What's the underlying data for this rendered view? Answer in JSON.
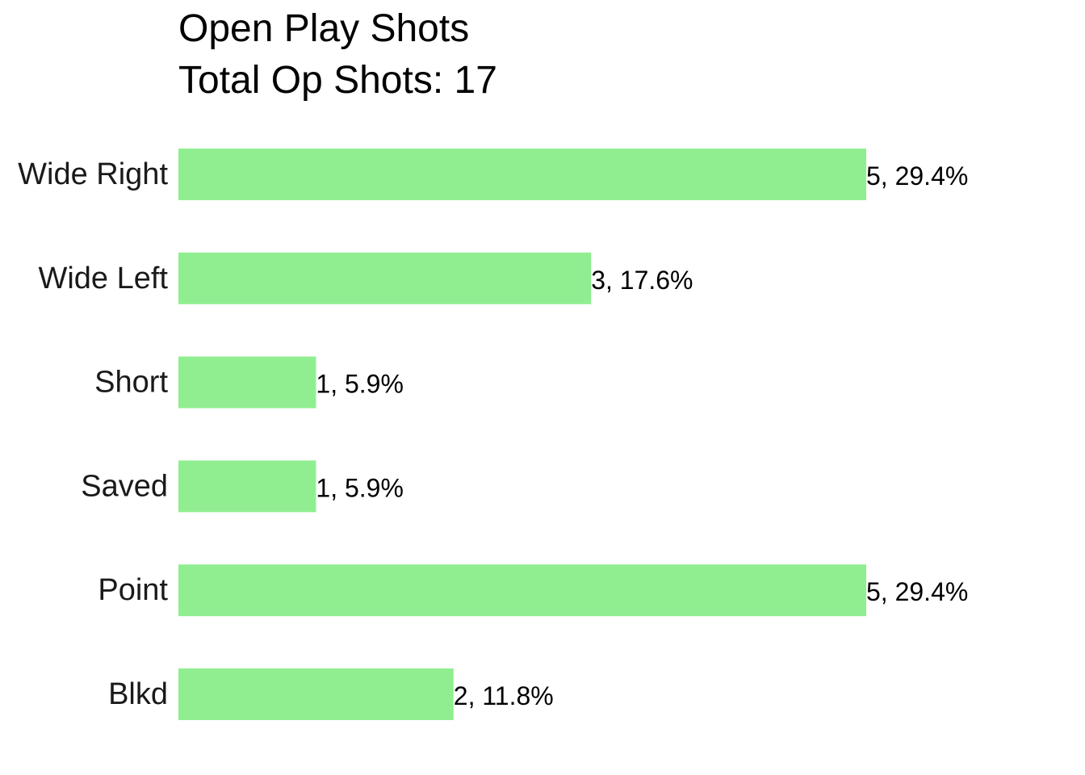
{
  "chart_data": {
    "type": "bar",
    "orientation": "horizontal",
    "title": "Open Play Shots",
    "subtitle": "Total Op Shots: 17",
    "categories": [
      "Wide Right",
      "Wide Left",
      "Short",
      "Saved",
      "Point",
      "Blkd"
    ],
    "values": [
      5,
      3,
      1,
      1,
      5,
      2
    ],
    "data_labels": [
      "5, 29.4%",
      "3, 17.6%",
      "1, 5.9%",
      "1, 5.9%",
      "5, 29.4%",
      "2, 11.8%"
    ],
    "xlim": [
      0,
      5
    ],
    "grid": false,
    "legend": "none",
    "bar_color": "#90EE90"
  }
}
